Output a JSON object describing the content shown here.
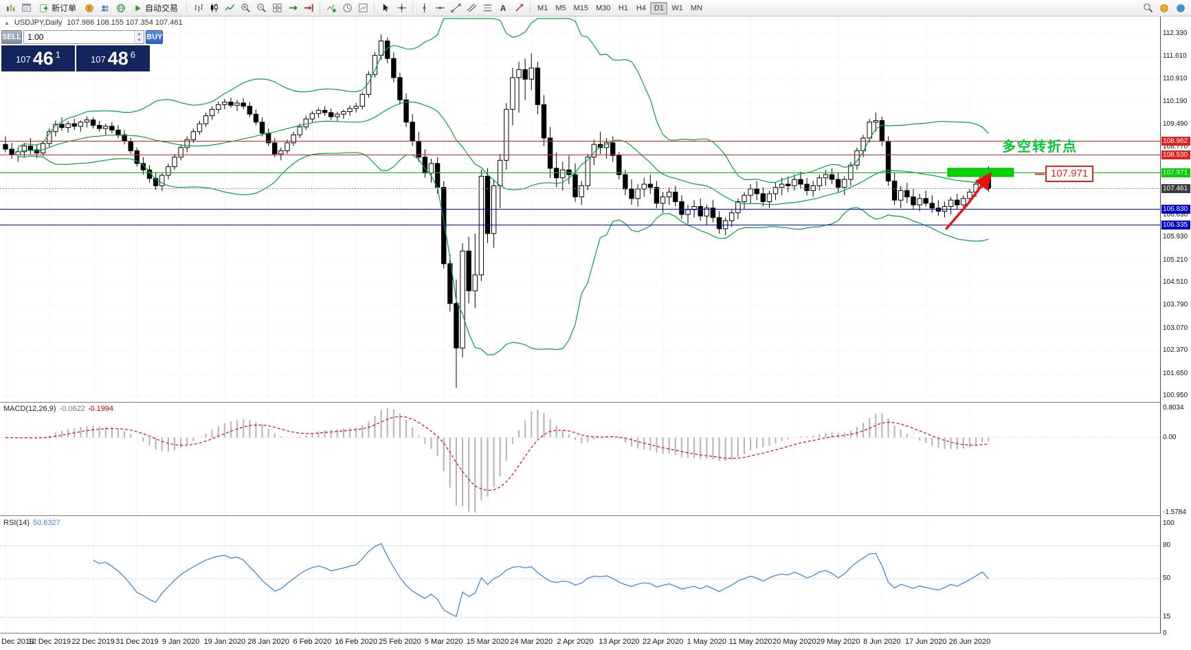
{
  "toolbar": {
    "new_order_label": "新订单",
    "auto_trading_label": "自动交易",
    "text_tool_label": "A",
    "timeframes": [
      "M1",
      "M5",
      "M15",
      "M30",
      "H1",
      "H4",
      "D1",
      "W1",
      "MN"
    ],
    "active_timeframe": "D1"
  },
  "symbol_info": {
    "toggle": "▲",
    "name": "USDJPY,Daily",
    "ohlc": "107.986 108.155 107.354 107.461"
  },
  "trade_panel": {
    "sell_label": "SELL",
    "buy_label": "BUY",
    "lot_size": "1.00",
    "sell_price_big": "107",
    "sell_price_main": "46",
    "sell_price_sup": "1",
    "buy_price_big": "107",
    "buy_price_main": "48",
    "buy_price_sup": "6"
  },
  "macd_panel": {
    "title": "MACD(12,26,9)",
    "value_main": "-0.0622",
    "value_signal": "-0.1994"
  },
  "rsi_panel": {
    "title": "RSI(14)",
    "value": "50.6327"
  },
  "chart_data": {
    "type": "candlestick",
    "symbol": "USDJPY",
    "period": "Daily",
    "price_axis": {
      "max": 112.33,
      "min": 100.95,
      "visible_labels": [
        "112.330",
        "111.610",
        "110.910",
        "110.190",
        "109.490",
        "108.770",
        "106.630",
        "105.930",
        "105.210",
        "104.510",
        "103.790",
        "103.070",
        "102.370",
        "101.650",
        "100.950"
      ],
      "hidden_grid": [
        108.05,
        107.33
      ]
    },
    "time_labels": [
      "Dec 2019",
      "12 Dec 2019",
      "22 Dec 2019",
      "31 Dec 2019",
      "9 Jan 2020",
      "19 Jan 2020",
      "28 Jan 2020",
      "6 Feb 2020",
      "16 Feb 2020",
      "25 Feb 2020",
      "5 Mar 2020",
      "15 Mar 2020",
      "24 Mar 2020",
      "2 Apr 2020",
      "13 Apr 2020",
      "22 Apr 2020",
      "1 May 2020",
      "11 May 2020",
      "20 May 2020",
      "29 May 2020",
      "8 Jun 2020",
      "17 Jun 2020",
      "26 Jun 2020"
    ],
    "candles_per_label": 7,
    "hlines": [
      {
        "price": 108.962,
        "label": "108.962",
        "color": "#e22020",
        "badge_bg": "#e22020",
        "badge_fg": "#ffffff",
        "style": "solid"
      },
      {
        "price": 108.53,
        "label": "108.530",
        "color": "#e22020",
        "badge_bg": "#e22020",
        "badge_fg": "#ffffff",
        "style": "solid"
      },
      {
        "price": 107.971,
        "label": "107.971",
        "color": "#00c000",
        "badge_bg": "#00cc00",
        "badge_fg": "#ffffff",
        "style": "solid"
      },
      {
        "price": 107.461,
        "label": "107.461",
        "color": "#909090",
        "badge_bg": "#3a3a3a",
        "badge_fg": "#ffffff",
        "style": "dotted"
      },
      {
        "price": 106.83,
        "label": "106.830",
        "color": "#0000cc",
        "badge_bg": "#0000cc",
        "badge_fg": "#ffffff",
        "style": "solid"
      },
      {
        "price": 106.335,
        "label": "106.335",
        "color": "#0000cc",
        "badge_bg": "#0000cc",
        "badge_fg": "#ffffff",
        "style": "solid"
      }
    ],
    "indicators": {
      "bollinger": {
        "period": 20,
        "deviation": 2,
        "color": "#00a43c"
      },
      "macd": {
        "fast": 12,
        "slow": 26,
        "signal": 9,
        "axis_labels": [
          "0.8034",
          "0.00",
          "-1.5784"
        ],
        "histogram_color": "#b8b8b8",
        "signal_color": "#e00000"
      },
      "rsi": {
        "period": 14,
        "levels": [
          80,
          50,
          15
        ],
        "axis_labels": [
          "100",
          "80",
          "50",
          "15",
          "0"
        ],
        "color": "#4286e0"
      }
    },
    "annotations": {
      "rect": {
        "from_candle": 150.5,
        "to_candle": 161,
        "price_top": 108.1,
        "price_bottom": 107.84,
        "color": "#00d500"
      },
      "arrow": {
        "points_candle_price": [
          [
            150.2,
            106.18
          ],
          [
            153.8,
            107.0
          ],
          [
            157.2,
            107.9
          ]
        ],
        "color": "#e81212"
      },
      "text": {
        "value": "多空转折点",
        "color": "#00c832"
      },
      "callout": {
        "value": "107.971",
        "color": "#e82020"
      }
    },
    "candles": [
      [
        108.85,
        109.1,
        108.6,
        108.7
      ],
      [
        108.7,
        108.9,
        108.4,
        108.52
      ],
      [
        108.52,
        108.75,
        108.3,
        108.62
      ],
      [
        108.62,
        108.9,
        108.45,
        108.8
      ],
      [
        108.8,
        109.05,
        108.55,
        108.68
      ],
      [
        108.68,
        108.85,
        108.42,
        108.58
      ],
      [
        108.58,
        108.95,
        108.48,
        108.88
      ],
      [
        108.88,
        109.35,
        108.75,
        109.25
      ],
      [
        109.25,
        109.6,
        109.1,
        109.48
      ],
      [
        109.48,
        109.7,
        109.28,
        109.38
      ],
      [
        109.38,
        109.58,
        109.22,
        109.5
      ],
      [
        109.5,
        109.66,
        109.3,
        109.42
      ],
      [
        109.42,
        109.6,
        109.25,
        109.55
      ],
      [
        109.55,
        109.72,
        109.38,
        109.62
      ],
      [
        109.62,
        109.7,
        109.35,
        109.45
      ],
      [
        109.45,
        109.58,
        109.25,
        109.35
      ],
      [
        109.35,
        109.5,
        109.15,
        109.42
      ],
      [
        109.42,
        109.55,
        109.2,
        109.3
      ],
      [
        109.3,
        109.45,
        109.05,
        109.15
      ],
      [
        109.15,
        109.3,
        108.85,
        108.95
      ],
      [
        108.95,
        109.05,
        108.55,
        108.65
      ],
      [
        108.65,
        108.75,
        108.15,
        108.25
      ],
      [
        108.25,
        108.45,
        107.9,
        108.05
      ],
      [
        108.05,
        108.2,
        107.65,
        107.78
      ],
      [
        107.78,
        107.98,
        107.42,
        107.55
      ],
      [
        107.55,
        107.95,
        107.38,
        107.88
      ],
      [
        107.88,
        108.25,
        107.75,
        108.15
      ],
      [
        108.15,
        108.55,
        108.05,
        108.45
      ],
      [
        108.45,
        108.85,
        108.35,
        108.75
      ],
      [
        108.75,
        109.1,
        108.6,
        109.0
      ],
      [
        109.0,
        109.35,
        108.9,
        109.25
      ],
      [
        109.25,
        109.6,
        109.15,
        109.5
      ],
      [
        109.5,
        109.85,
        109.4,
        109.75
      ],
      [
        109.75,
        110.05,
        109.62,
        109.95
      ],
      [
        109.95,
        110.2,
        109.82,
        110.1
      ],
      [
        110.1,
        110.28,
        109.95,
        110.18
      ],
      [
        110.18,
        110.32,
        110.0,
        110.08
      ],
      [
        110.08,
        110.25,
        109.9,
        110.15
      ],
      [
        110.15,
        110.3,
        109.95,
        110.05
      ],
      [
        110.05,
        110.18,
        109.7,
        109.8
      ],
      [
        109.8,
        109.95,
        109.45,
        109.55
      ],
      [
        109.55,
        109.7,
        109.1,
        109.2
      ],
      [
        109.2,
        109.35,
        108.8,
        108.9
      ],
      [
        108.9,
        109.05,
        108.45,
        108.55
      ],
      [
        108.55,
        108.75,
        108.35,
        108.65
      ],
      [
        108.65,
        109.0,
        108.55,
        108.9
      ],
      [
        108.9,
        109.25,
        108.8,
        109.15
      ],
      [
        109.15,
        109.5,
        109.05,
        109.4
      ],
      [
        109.4,
        109.75,
        109.3,
        109.65
      ],
      [
        109.65,
        109.9,
        109.55,
        109.82
      ],
      [
        109.82,
        110.0,
        109.68,
        109.92
      ],
      [
        109.92,
        110.05,
        109.75,
        109.85
      ],
      [
        109.85,
        109.98,
        109.62,
        109.72
      ],
      [
        109.72,
        109.88,
        109.58,
        109.8
      ],
      [
        109.8,
        109.95,
        109.65,
        109.88
      ],
      [
        109.88,
        110.08,
        109.75,
        109.98
      ],
      [
        109.98,
        110.15,
        109.85,
        110.05
      ],
      [
        110.05,
        110.5,
        109.95,
        110.42
      ],
      [
        110.42,
        111.15,
        110.32,
        111.05
      ],
      [
        111.05,
        111.75,
        110.95,
        111.65
      ],
      [
        111.65,
        112.3,
        111.5,
        112.1
      ],
      [
        112.1,
        112.21,
        111.4,
        111.55
      ],
      [
        111.55,
        111.75,
        110.8,
        110.95
      ],
      [
        110.95,
        111.1,
        110.1,
        110.25
      ],
      [
        110.25,
        110.45,
        109.4,
        109.55
      ],
      [
        109.55,
        109.8,
        108.8,
        108.95
      ],
      [
        108.95,
        109.25,
        108.3,
        108.45
      ],
      [
        108.45,
        108.7,
        107.8,
        107.95
      ],
      [
        107.95,
        108.4,
        107.65,
        108.25
      ],
      [
        108.25,
        108.45,
        107.3,
        107.5
      ],
      [
        107.5,
        107.7,
        104.95,
        105.1
      ],
      [
        105.1,
        105.4,
        103.6,
        103.85
      ],
      [
        103.85,
        104.6,
        101.2,
        102.45
      ],
      [
        102.45,
        105.75,
        102.15,
        105.5
      ],
      [
        105.5,
        105.95,
        103.85,
        104.25
      ],
      [
        104.25,
        106.05,
        103.7,
        104.75
      ],
      [
        104.75,
        108.05,
        104.55,
        107.85
      ],
      [
        107.85,
        108.1,
        105.75,
        106.05
      ],
      [
        106.05,
        107.75,
        105.6,
        107.55
      ],
      [
        107.55,
        108.55,
        106.85,
        108.35
      ],
      [
        108.35,
        110.15,
        108.05,
        109.95
      ],
      [
        109.95,
        111.25,
        109.45,
        110.95
      ],
      [
        110.95,
        111.45,
        109.85,
        111.2
      ],
      [
        111.2,
        111.55,
        110.25,
        110.9
      ],
      [
        110.9,
        111.71,
        110.55,
        111.25
      ],
      [
        111.25,
        111.45,
        109.8,
        110.1
      ],
      [
        110.1,
        110.4,
        108.8,
        109.05
      ],
      [
        109.05,
        109.4,
        107.8,
        108.1
      ],
      [
        108.1,
        108.6,
        107.5,
        107.8
      ],
      [
        107.8,
        108.3,
        107.4,
        108.05
      ],
      [
        108.05,
        108.5,
        107.6,
        107.9
      ],
      [
        107.9,
        108.25,
        107.05,
        107.2
      ],
      [
        107.2,
        107.7,
        106.95,
        107.55
      ],
      [
        107.55,
        108.55,
        107.4,
        108.45
      ],
      [
        108.45,
        109.0,
        108.2,
        108.85
      ],
      [
        108.85,
        109.25,
        108.55,
        108.75
      ],
      [
        108.75,
        109.05,
        108.4,
        108.9
      ],
      [
        108.9,
        109.1,
        108.3,
        108.5
      ],
      [
        108.5,
        108.6,
        107.75,
        107.9
      ],
      [
        107.9,
        108.05,
        107.25,
        107.45
      ],
      [
        107.45,
        107.75,
        106.95,
        107.15
      ],
      [
        107.15,
        107.6,
        106.9,
        107.45
      ],
      [
        107.45,
        107.8,
        107.2,
        107.6
      ],
      [
        107.6,
        107.9,
        107.3,
        107.5
      ],
      [
        107.5,
        107.7,
        106.85,
        107.0
      ],
      [
        107.0,
        107.35,
        106.7,
        107.2
      ],
      [
        107.2,
        107.5,
        106.95,
        107.35
      ],
      [
        107.35,
        107.55,
        106.9,
        107.05
      ],
      [
        107.05,
        107.25,
        106.5,
        106.65
      ],
      [
        106.65,
        106.95,
        106.35,
        106.8
      ],
      [
        106.8,
        107.1,
        106.55,
        106.9
      ],
      [
        106.9,
        107.15,
        106.45,
        106.6
      ],
      [
        106.6,
        106.95,
        106.3,
        106.85
      ],
      [
        106.85,
        107.1,
        106.4,
        106.55
      ],
      [
        106.55,
        106.75,
        106.05,
        106.2
      ],
      [
        106.2,
        106.55,
        106.0,
        106.45
      ],
      [
        106.45,
        106.8,
        106.25,
        106.7
      ],
      [
        106.7,
        107.15,
        106.5,
        107.05
      ],
      [
        107.05,
        107.35,
        106.8,
        107.25
      ],
      [
        107.25,
        107.6,
        107.0,
        107.45
      ],
      [
        107.45,
        107.7,
        107.1,
        107.3
      ],
      [
        107.3,
        107.5,
        106.9,
        107.05
      ],
      [
        107.05,
        107.4,
        106.85,
        107.3
      ],
      [
        107.3,
        107.65,
        107.1,
        107.5
      ],
      [
        107.5,
        107.8,
        107.25,
        107.6
      ],
      [
        107.6,
        107.85,
        107.35,
        107.55
      ],
      [
        107.55,
        107.9,
        107.4,
        107.75
      ],
      [
        107.75,
        108.0,
        107.45,
        107.6
      ],
      [
        107.6,
        107.8,
        107.25,
        107.4
      ],
      [
        107.4,
        107.7,
        107.2,
        107.55
      ],
      [
        107.55,
        107.9,
        107.4,
        107.8
      ],
      [
        107.8,
        108.05,
        107.55,
        107.9
      ],
      [
        107.9,
        108.1,
        107.6,
        107.75
      ],
      [
        107.75,
        107.95,
        107.35,
        107.5
      ],
      [
        107.5,
        107.85,
        107.25,
        107.75
      ],
      [
        107.75,
        108.3,
        107.55,
        108.2
      ],
      [
        108.2,
        108.75,
        108.05,
        108.65
      ],
      [
        108.65,
        109.15,
        108.45,
        109.05
      ],
      [
        109.05,
        109.65,
        108.9,
        109.55
      ],
      [
        109.55,
        109.85,
        109.25,
        109.6
      ],
      [
        109.6,
        109.72,
        108.8,
        108.95
      ],
      [
        108.95,
        109.1,
        107.55,
        107.7
      ],
      [
        107.7,
        107.95,
        106.95,
        107.1
      ],
      [
        107.1,
        107.55,
        106.85,
        107.4
      ],
      [
        107.4,
        107.65,
        107.0,
        107.2
      ],
      [
        107.2,
        107.45,
        106.8,
        106.95
      ],
      [
        106.95,
        107.3,
        106.75,
        107.15
      ],
      [
        107.15,
        107.4,
        106.9,
        107.0
      ],
      [
        107.0,
        107.25,
        106.7,
        106.85
      ],
      [
        106.85,
        107.1,
        106.6,
        106.75
      ],
      [
        106.75,
        107.05,
        106.55,
        106.9
      ],
      [
        106.9,
        107.2,
        106.65,
        107.1
      ],
      [
        107.1,
        107.3,
        106.8,
        106.95
      ],
      [
        106.95,
        107.25,
        106.75,
        107.15
      ],
      [
        107.15,
        107.45,
        107.0,
        107.35
      ],
      [
        107.35,
        107.7,
        107.2,
        107.6
      ],
      [
        107.6,
        108.0,
        107.45,
        107.9
      ],
      [
        107.99,
        108.16,
        107.35,
        107.46
      ]
    ]
  }
}
